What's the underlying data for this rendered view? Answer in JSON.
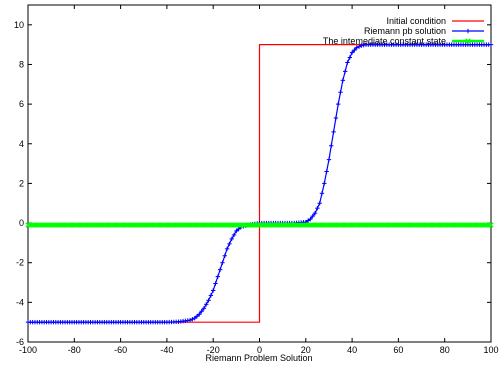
{
  "chart_data": {
    "type": "line",
    "xlabel": "Riemann Problem Solution",
    "ylabel": "",
    "xlim": [
      -100,
      100
    ],
    "ylim": [
      -6,
      11
    ],
    "x_ticks": [
      "-100",
      "-80",
      "-60",
      "-40",
      "-20",
      "0",
      "20",
      "40",
      "60",
      "80",
      "100"
    ],
    "y_ticks": [
      "-6",
      "-4",
      "-2",
      "0",
      "2",
      "4",
      "6",
      "8",
      "10"
    ],
    "grid": false,
    "legend_position": "top-right",
    "series": [
      {
        "name": "Initial condition",
        "color": "#ff0000",
        "marker": "none",
        "x": [
          -100,
          0,
          0,
          100
        ],
        "y": [
          -5,
          -5,
          9,
          9
        ]
      },
      {
        "name": "Riemann pb solution",
        "color": "#0000ff",
        "marker": "plus",
        "x": [
          -100,
          -40,
          -35,
          -30,
          -28,
          -26,
          -24,
          -22,
          -20,
          -18,
          -16,
          -14,
          -12,
          -10,
          -8,
          -5,
          0,
          5,
          10,
          15,
          20,
          22,
          24,
          26,
          28,
          30,
          32,
          34,
          36,
          38,
          40,
          42,
          44,
          46,
          50,
          60,
          100
        ],
        "y": [
          -5,
          -5,
          -4.98,
          -4.9,
          -4.8,
          -4.6,
          -4.3,
          -3.9,
          -3.4,
          -2.7,
          -2.0,
          -1.3,
          -0.8,
          -0.4,
          -0.2,
          -0.1,
          0,
          0,
          0,
          0,
          0.05,
          0.2,
          0.5,
          1.0,
          2.0,
          3.2,
          4.6,
          6.0,
          7.2,
          8.1,
          8.6,
          8.85,
          8.95,
          9,
          9,
          9,
          9
        ]
      },
      {
        "name": "The intemediate constant state",
        "color": "#00ff00",
        "marker": "x",
        "x": [
          -100,
          100
        ],
        "y": [
          -0.1,
          -0.1
        ]
      }
    ]
  }
}
